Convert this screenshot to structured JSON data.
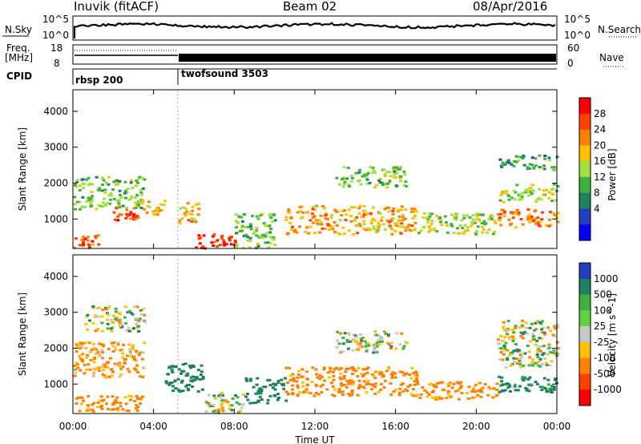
{
  "header": {
    "station": "Inuvik (fitACF)",
    "beam": "Beam 02",
    "date": "08/Apr/2016"
  },
  "top_panels": {
    "nsky": {
      "label": "N.Sky",
      "left_ticks": [
        "10^5",
        "10^0"
      ],
      "right_ticks": [
        "10^5",
        "10^0"
      ],
      "right_label": "N.Search"
    },
    "freq": {
      "label_line1": "Freq.",
      "label_line2": "[MHz]",
      "left_ticks": [
        "18",
        "8"
      ],
      "right_ticks": [
        "60",
        "0"
      ],
      "right_label": "Nave"
    },
    "cpid": {
      "label": "CPID",
      "programs": [
        {
          "name": "rbsp 200",
          "start_hour": 0
        },
        {
          "name": "twofsound 3503",
          "start_hour": 5.3
        }
      ]
    }
  },
  "x_axis": {
    "label": "Time UT",
    "tick_labels": [
      "00:00",
      "04:00",
      "08:00",
      "12:00",
      "16:00",
      "20:00",
      "00:00"
    ],
    "tick_hours": [
      0,
      4,
      8,
      12,
      16,
      20,
      24
    ]
  },
  "chart_data": [
    {
      "type": "heatmap",
      "x_unit": "hours UT",
      "xlim": [
        0,
        24
      ],
      "ylabel": "Slant Range [km]",
      "ylim": [
        180,
        4600
      ],
      "yticks": [
        1000,
        2000,
        3000,
        4000
      ],
      "colorbar": {
        "label": "Power [dB]",
        "ticks": [
          "28",
          "24",
          "20",
          "16",
          "12",
          "8",
          "4"
        ],
        "colors": [
          "#ff0000",
          "#ff4000",
          "#ff8000",
          "#ffc000",
          "#a0e040",
          "#40b040",
          "#208060",
          "#2040c0",
          "#0000ff"
        ]
      },
      "regions": [
        {
          "t0": 0.0,
          "t1": 1.3,
          "r0": 200,
          "r1": 600,
          "value": 24
        },
        {
          "t0": 0.0,
          "t1": 3.5,
          "r0": 1300,
          "r1": 2200,
          "value": 12
        },
        {
          "t0": 1.8,
          "t1": 3.2,
          "r0": 950,
          "r1": 1350,
          "value": 26
        },
        {
          "t0": 3.2,
          "t1": 4.5,
          "r0": 1150,
          "r1": 1550,
          "value": 20
        },
        {
          "t0": 5.2,
          "t1": 6.2,
          "r0": 900,
          "r1": 1500,
          "value": 20
        },
        {
          "t0": 6.0,
          "t1": 8.0,
          "r0": 200,
          "r1": 600,
          "value": 28
        },
        {
          "t0": 8.0,
          "t1": 10.0,
          "r0": 200,
          "r1": 1200,
          "value": 12
        },
        {
          "t0": 10.5,
          "t1": 17.0,
          "r0": 600,
          "r1": 1400,
          "value": 20
        },
        {
          "t0": 13.0,
          "t1": 16.5,
          "r0": 1900,
          "r1": 2500,
          "value": 12
        },
        {
          "t0": 17.0,
          "t1": 21.0,
          "r0": 600,
          "r1": 1200,
          "value": 14
        },
        {
          "t0": 21.0,
          "t1": 24.0,
          "r0": 800,
          "r1": 1300,
          "value": 22
        },
        {
          "t0": 21.0,
          "t1": 24.0,
          "r0": 1500,
          "r1": 2000,
          "value": 14
        },
        {
          "t0": 21.0,
          "t1": 24.0,
          "r0": 2400,
          "r1": 2800,
          "value": 8
        }
      ]
    },
    {
      "type": "heatmap",
      "x_unit": "hours UT",
      "xlim": [
        0,
        24
      ],
      "ylabel": "Slant Range [km]",
      "ylim": [
        180,
        4600
      ],
      "yticks": [
        1000,
        2000,
        3000,
        4000
      ],
      "colorbar": {
        "label": "Velocity [m s^-1]",
        "ticks": [
          "1000",
          "500",
          "100",
          "25",
          "-25",
          "-100",
          "-500",
          "-1000"
        ],
        "colors": [
          "#2040c0",
          "#208060",
          "#40b040",
          "#60d040",
          "#c8c8c8",
          "#ffc000",
          "#ff8000",
          "#ff4000",
          "#ff0000"
        ]
      },
      "regions": [
        {
          "t0": 0.0,
          "t1": 3.5,
          "r0": 1200,
          "r1": 2200,
          "value": -150
        },
        {
          "t0": 0.0,
          "t1": 3.5,
          "r0": 250,
          "r1": 700,
          "value": -200
        },
        {
          "t0": 0.5,
          "t1": 3.5,
          "r0": 2500,
          "r1": 3200,
          "value": 0
        },
        {
          "t0": 4.5,
          "t1": 6.5,
          "r0": 800,
          "r1": 1600,
          "value": 300
        },
        {
          "t0": 6.5,
          "t1": 8.5,
          "r0": 250,
          "r1": 800,
          "value": 0
        },
        {
          "t0": 8.5,
          "t1": 10.5,
          "r0": 500,
          "r1": 1200,
          "value": 300
        },
        {
          "t0": 10.5,
          "t1": 17.0,
          "r0": 700,
          "r1": 1500,
          "value": -200
        },
        {
          "t0": 13.0,
          "t1": 16.5,
          "r0": 1900,
          "r1": 2500,
          "value": 0
        },
        {
          "t0": 17.0,
          "t1": 21.0,
          "r0": 600,
          "r1": 1100,
          "value": -200
        },
        {
          "t0": 21.0,
          "t1": 24.0,
          "r0": 800,
          "r1": 1300,
          "value": 200
        },
        {
          "t0": 21.0,
          "t1": 24.0,
          "r0": 1500,
          "r1": 2800,
          "value": 0
        }
      ]
    }
  ]
}
